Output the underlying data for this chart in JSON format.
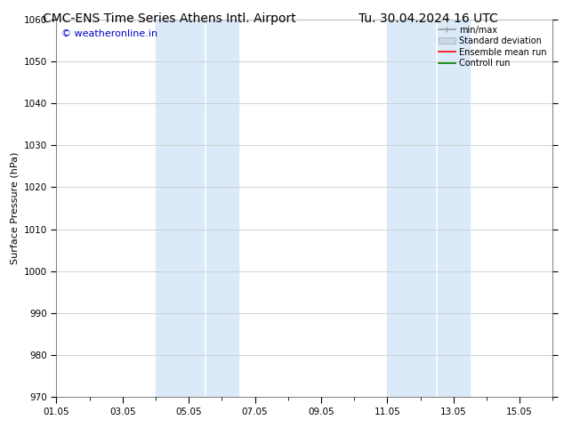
{
  "title_left": "CMC-ENS Time Series Athens Intl. Airport",
  "title_right": "Tu. 30.04.2024 16 UTC",
  "ylabel": "Surface Pressure (hPa)",
  "ylim": [
    970,
    1060
  ],
  "yticks": [
    970,
    980,
    990,
    1000,
    1010,
    1020,
    1030,
    1040,
    1050,
    1060
  ],
  "xtick_labels": [
    "01.05",
    "03.05",
    "05.05",
    "07.05",
    "09.05",
    "11.05",
    "13.05",
    "15.05"
  ],
  "xtick_positions": [
    0,
    2,
    4,
    6,
    8,
    10,
    12,
    14
  ],
  "xlim": [
    0,
    15
  ],
  "shaded_bands": [
    {
      "x_start": 3.0,
      "x_end": 3.5,
      "color": "#daeaf8"
    },
    {
      "x_start": 3.5,
      "x_end": 5.5,
      "color": "#daeaf8"
    },
    {
      "x_start": 10.0,
      "x_end": 10.5,
      "color": "#daeaf8"
    },
    {
      "x_start": 10.5,
      "x_end": 12.5,
      "color": "#daeaf8"
    }
  ],
  "watermark": "© weatheronline.in",
  "watermark_color": "#0000cc",
  "watermark_fontsize": 8,
  "legend_items": [
    {
      "label": "min/max",
      "color": "#aaaaaa"
    },
    {
      "label": "Standard deviation",
      "color": "#c8d8e8"
    },
    {
      "label": "Ensemble mean run",
      "color": "red"
    },
    {
      "label": "Controll run",
      "color": "green"
    }
  ],
  "bg_color": "#ffffff",
  "grid_color": "#cccccc",
  "title_fontsize": 10,
  "ylabel_fontsize": 8,
  "tick_fontsize": 7.5
}
